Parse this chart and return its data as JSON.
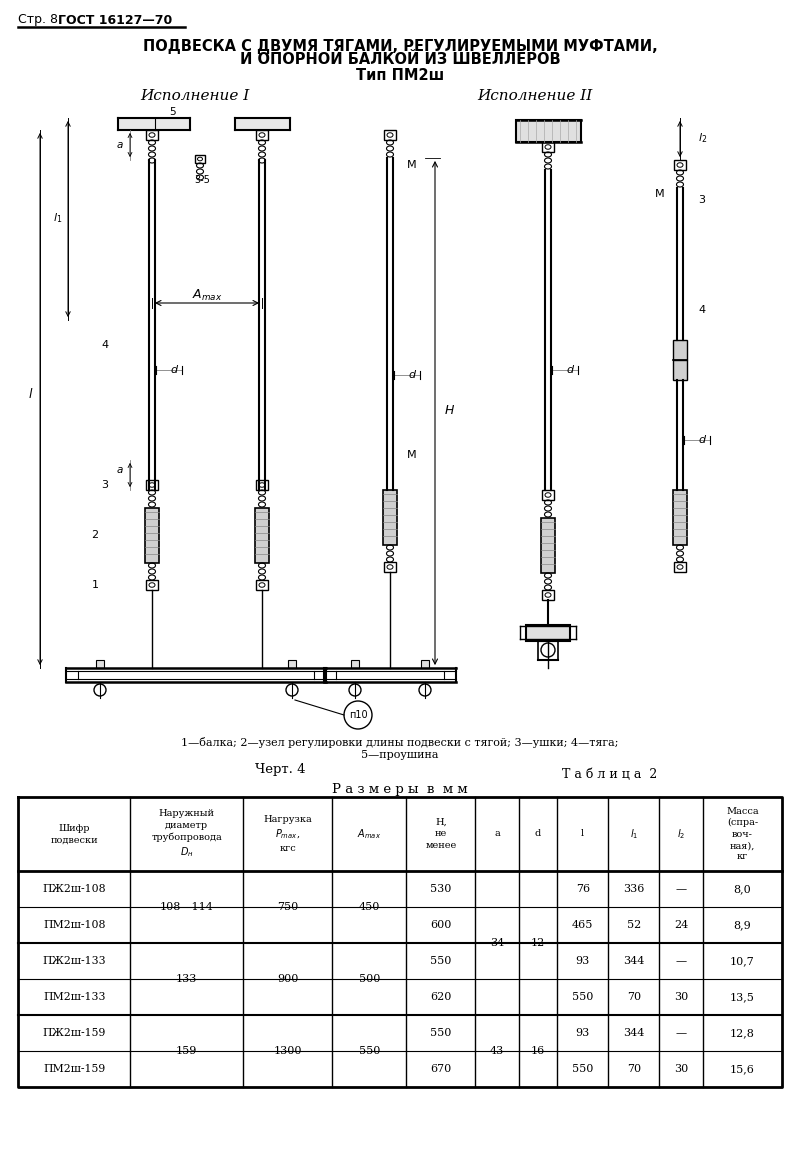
{
  "page_header_normal": "Стр. 8  ",
  "page_header_bold": "ГОСТ 16127—70",
  "title_line1": "ПОДВЕСКА С ДВУМЯ ТЯГАМИ, РЕГУЛИРУЕМЫМИ МУФТАМИ,",
  "title_line2": "И ОПОРНОЙ БАЛКОЙ ИЗ ШВЕЛЛЕРОВ",
  "title_line3": "Тип ПМ2ш",
  "subtitle1": "Исполнение I",
  "subtitle2": "Исполнение II",
  "caption_line1": "1—балка; 2—узел регулировки длины подвески с тягой; 3—ушки; 4—тяга;",
  "caption_line2": "5—проушина",
  "chert": "Черт. 4",
  "tablica": "Т а б л и ц а  2",
  "razm": "Р а з м е р ы  в  м м",
  "col_headers": [
    "Шифр\nподвески",
    "Наружный\nдиаметр\nтрубопровода\nDн",
    "Нагрузка\nPмах,\nкгс",
    "Aмах",
    "H,\nне\nменее",
    "a",
    "d",
    "l",
    "l₁",
    "l₂",
    "Масса\n(спра-\nвоч-\nная),\nкг"
  ],
  "table_data": [
    [
      "ПЖ2ш-108",
      "108—114",
      "750",
      "450",
      "530",
      "34",
      "12",
      "76",
      "336",
      "—",
      "8,0"
    ],
    [
      "ПМ2ш-108",
      "",
      "",
      "",
      "600",
      "",
      "",
      "465",
      "52",
      "24",
      "8,9"
    ],
    [
      "ПЖ2ш-133",
      "133",
      "900",
      "500",
      "550",
      "",
      "",
      "93",
      "344",
      "—",
      "10,7"
    ],
    [
      "ПМ2ш-133",
      "",
      "",
      "",
      "620",
      "43",
      "16",
      "550",
      "70",
      "30",
      "13,5"
    ],
    [
      "ПЖ2ш-159",
      "159",
      "1300",
      "550",
      "550",
      "",
      "",
      "93",
      "344",
      "—",
      "12,8"
    ],
    [
      "ПМ2ш-159",
      "",
      "",
      "",
      "670",
      "",
      "",
      "550",
      "70",
      "30",
      "15,6"
    ]
  ],
  "bg_color": "#ffffff"
}
